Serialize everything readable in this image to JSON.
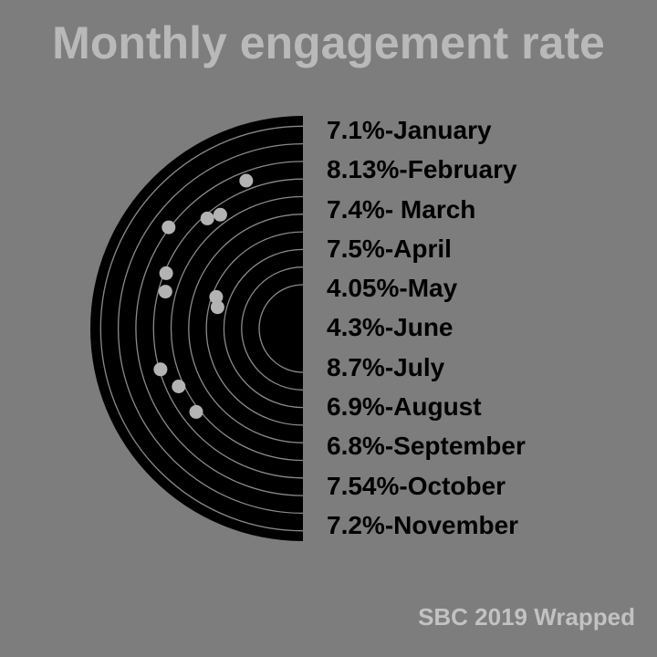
{
  "title": "Monthly engagement rate",
  "footer": "SBC 2019 Wrapped",
  "colors": {
    "background": "#7d7d7d",
    "disc": "#000000",
    "rings": "#8a8a8a",
    "dots": "#b3b3b3",
    "title": "#b9b9b9",
    "footer": "#c2c2c2"
  },
  "chart_data": {
    "type": "radial-dot",
    "title": "Monthly engagement rate",
    "categories": [
      "January",
      "February",
      "March",
      "April",
      "May",
      "June",
      "July",
      "August",
      "September",
      "October",
      "November"
    ],
    "values": [
      7.1,
      8.13,
      7.4,
      7.5,
      4.05,
      4.3,
      8.7,
      6.9,
      6.8,
      7.54,
      7.2
    ],
    "unit": "%",
    "labels": [
      "7.1%-January",
      "8.13%-February",
      "7.4%- March",
      "7.5%-April",
      "4.05%-May",
      "4.3%-June",
      "8.7%-July",
      "6.9%-August",
      "6.8%-September",
      "7.54%-October",
      "7.2%-November"
    ]
  }
}
